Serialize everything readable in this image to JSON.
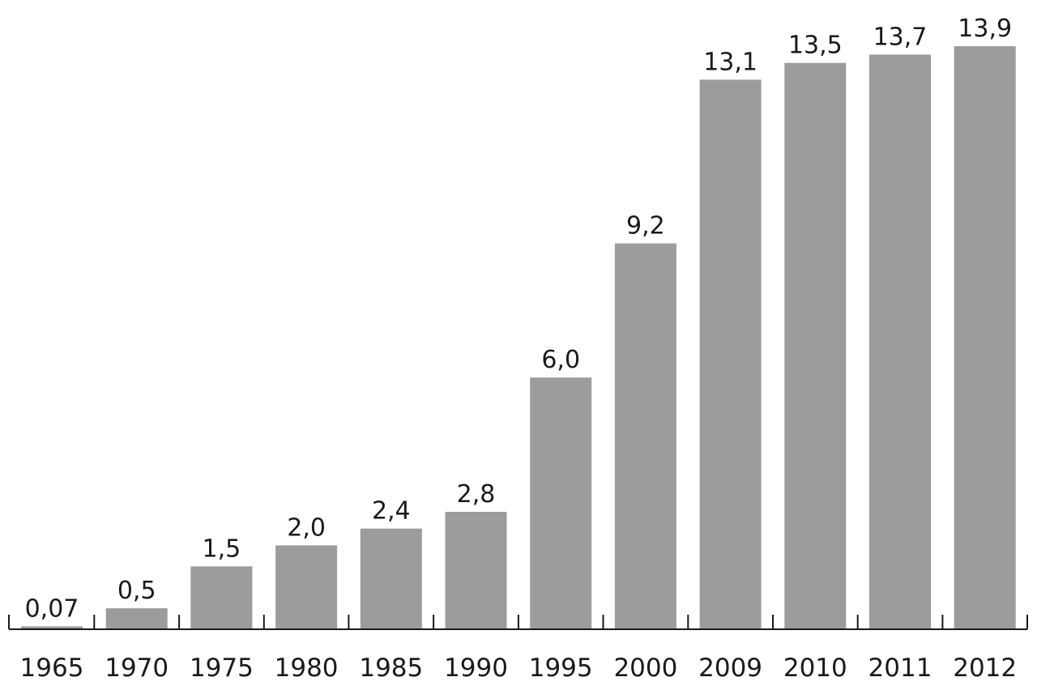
{
  "chart_data": {
    "type": "bar",
    "title": "",
    "xlabel": "",
    "ylabel": "",
    "categories": [
      "1965",
      "1970",
      "1975",
      "1980",
      "1985",
      "1990",
      "1995",
      "2000",
      "2009",
      "2010",
      "2011",
      "2012"
    ],
    "values": [
      0.07,
      0.5,
      1.5,
      2.0,
      2.4,
      2.8,
      6.0,
      9.2,
      13.1,
      13.5,
      13.7,
      13.9
    ],
    "value_labels": [
      "0,07",
      "0,5",
      "1,5",
      "2,0",
      "2,4",
      "2,8",
      "6,0",
      "9,2",
      "13,1",
      "13,5",
      "13,7",
      "13,9"
    ],
    "ylim": [
      0,
      14
    ],
    "grid": false,
    "legend": "none",
    "bar_color": "#9b9c9e",
    "axis_color": "#1a1a1a"
  }
}
